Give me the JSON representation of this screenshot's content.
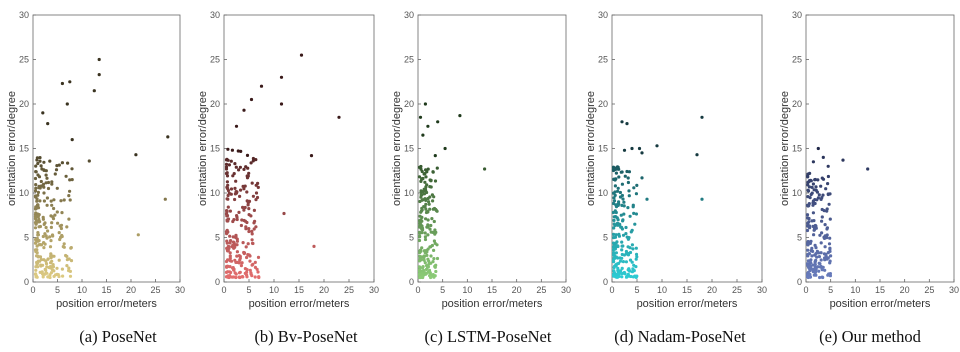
{
  "chart_data": [
    {
      "type": "scatter",
      "caption": "(a) PoseNet",
      "xlabel": "position error/meters",
      "ylabel": "orientation error/degree",
      "xlim": [
        0,
        30
      ],
      "ylim": [
        0,
        30
      ],
      "xticks": [
        0,
        5,
        10,
        15,
        20,
        25,
        30
      ],
      "yticks": [
        0,
        5,
        10,
        15,
        20,
        25,
        30
      ],
      "color_low": "#e2cf85",
      "color_high": "#3a3320",
      "outliers": [
        [
          13.5,
          25.0
        ],
        [
          7.5,
          22.5
        ],
        [
          6.0,
          22.3
        ],
        [
          13.5,
          23.3
        ],
        [
          12.5,
          21.5
        ],
        [
          7.0,
          20.0
        ],
        [
          2.0,
          19.0
        ],
        [
          3.0,
          17.8
        ],
        [
          8.0,
          16.0
        ],
        [
          27.5,
          16.3
        ],
        [
          21.0,
          14.3
        ],
        [
          11.5,
          13.6
        ],
        [
          6.0,
          13.4
        ],
        [
          27.0,
          9.3
        ],
        [
          21.5,
          5.3
        ],
        [
          8.0,
          11.5
        ]
      ],
      "cluster": {
        "count": 230,
        "x_range": [
          0.5,
          8.0
        ],
        "y_range": [
          0.5,
          14.0
        ]
      }
    },
    {
      "type": "scatter",
      "caption": "(b) Bv-PoseNet",
      "xlabel": "position error/meters",
      "ylabel": "orientation error/degree",
      "xlim": [
        0,
        30
      ],
      "ylim": [
        0,
        30
      ],
      "xticks": [
        0,
        5,
        10,
        15,
        20,
        25,
        30
      ],
      "yticks": [
        0,
        5,
        10,
        15,
        20,
        25,
        30
      ],
      "color_low": "#e87070",
      "color_high": "#3a1a1a",
      "outliers": [
        [
          15.5,
          25.5
        ],
        [
          11.5,
          23.0
        ],
        [
          7.5,
          22.0
        ],
        [
          5.5,
          20.5
        ],
        [
          4.0,
          19.3
        ],
        [
          11.5,
          20.0
        ],
        [
          23.0,
          18.5
        ],
        [
          2.5,
          17.5
        ],
        [
          17.5,
          14.2
        ],
        [
          12.0,
          7.7
        ],
        [
          18.0,
          4.0
        ],
        [
          6.5,
          10.0
        ]
      ],
      "cluster": {
        "count": 230,
        "x_range": [
          0.5,
          7.0
        ],
        "y_range": [
          0.5,
          15.0
        ]
      }
    },
    {
      "type": "scatter",
      "caption": "(c) LSTM-PoseNet",
      "xlabel": "position error/meters",
      "ylabel": "orientation error/degree",
      "xlim": [
        0,
        30
      ],
      "ylim": [
        0,
        30
      ],
      "xticks": [
        0,
        5,
        10,
        15,
        20,
        25,
        30
      ],
      "yticks": [
        0,
        5,
        10,
        15,
        20,
        25,
        30
      ],
      "color_low": "#8fd07a",
      "color_high": "#1f3a1c",
      "outliers": [
        [
          1.5,
          20.0
        ],
        [
          8.5,
          18.7
        ],
        [
          0.5,
          18.5
        ],
        [
          4.0,
          18.0
        ],
        [
          2.0,
          17.5
        ],
        [
          1.0,
          16.5
        ],
        [
          5.5,
          15.0
        ],
        [
          13.5,
          12.7
        ],
        [
          3.5,
          14.2
        ]
      ],
      "cluster": {
        "count": 200,
        "x_range": [
          0.3,
          4.0
        ],
        "y_range": [
          0.5,
          13.0
        ]
      }
    },
    {
      "type": "scatter",
      "caption": "(d) Nadam-PoseNet",
      "xlabel": "position error/meters",
      "ylabel": "orientation error/degree",
      "xlim": [
        0,
        30
      ],
      "ylim": [
        0,
        30
      ],
      "xticks": [
        0,
        5,
        10,
        15,
        20,
        25,
        30
      ],
      "yticks": [
        0,
        5,
        10,
        15,
        20,
        25,
        30
      ],
      "color_low": "#2fd0d8",
      "color_high": "#163a40",
      "outliers": [
        [
          18.0,
          18.5
        ],
        [
          2.0,
          18.0
        ],
        [
          3.0,
          17.8
        ],
        [
          9.0,
          15.3
        ],
        [
          4.0,
          15.0
        ],
        [
          5.5,
          15.0
        ],
        [
          6.0,
          14.5
        ],
        [
          17.0,
          14.3
        ],
        [
          18.0,
          9.3
        ],
        [
          2.5,
          14.8
        ],
        [
          7.0,
          9.3
        ],
        [
          6.0,
          11.7
        ]
      ],
      "cluster": {
        "count": 210,
        "x_range": [
          0.3,
          5.0
        ],
        "y_range": [
          0.5,
          13.0
        ]
      }
    },
    {
      "type": "scatter",
      "caption": "(e) Our method",
      "xlabel": "position error/meters",
      "ylabel": "orientation error/degree",
      "xlim": [
        0,
        30
      ],
      "ylim": [
        0,
        30
      ],
      "xticks": [
        0,
        5,
        10,
        15,
        20,
        25,
        30
      ],
      "yticks": [
        0,
        5,
        10,
        15,
        20,
        25,
        30
      ],
      "color_low": "#6a7ec0",
      "color_high": "#1f2748",
      "outliers": [
        [
          12.5,
          12.7
        ],
        [
          7.5,
          13.7
        ],
        [
          2.5,
          15.0
        ],
        [
          3.5,
          14.0
        ],
        [
          1.5,
          13.5
        ],
        [
          4.5,
          13.0
        ]
      ],
      "cluster": {
        "count": 200,
        "x_range": [
          0.3,
          5.0
        ],
        "y_range": [
          0.5,
          12.5
        ]
      }
    }
  ]
}
